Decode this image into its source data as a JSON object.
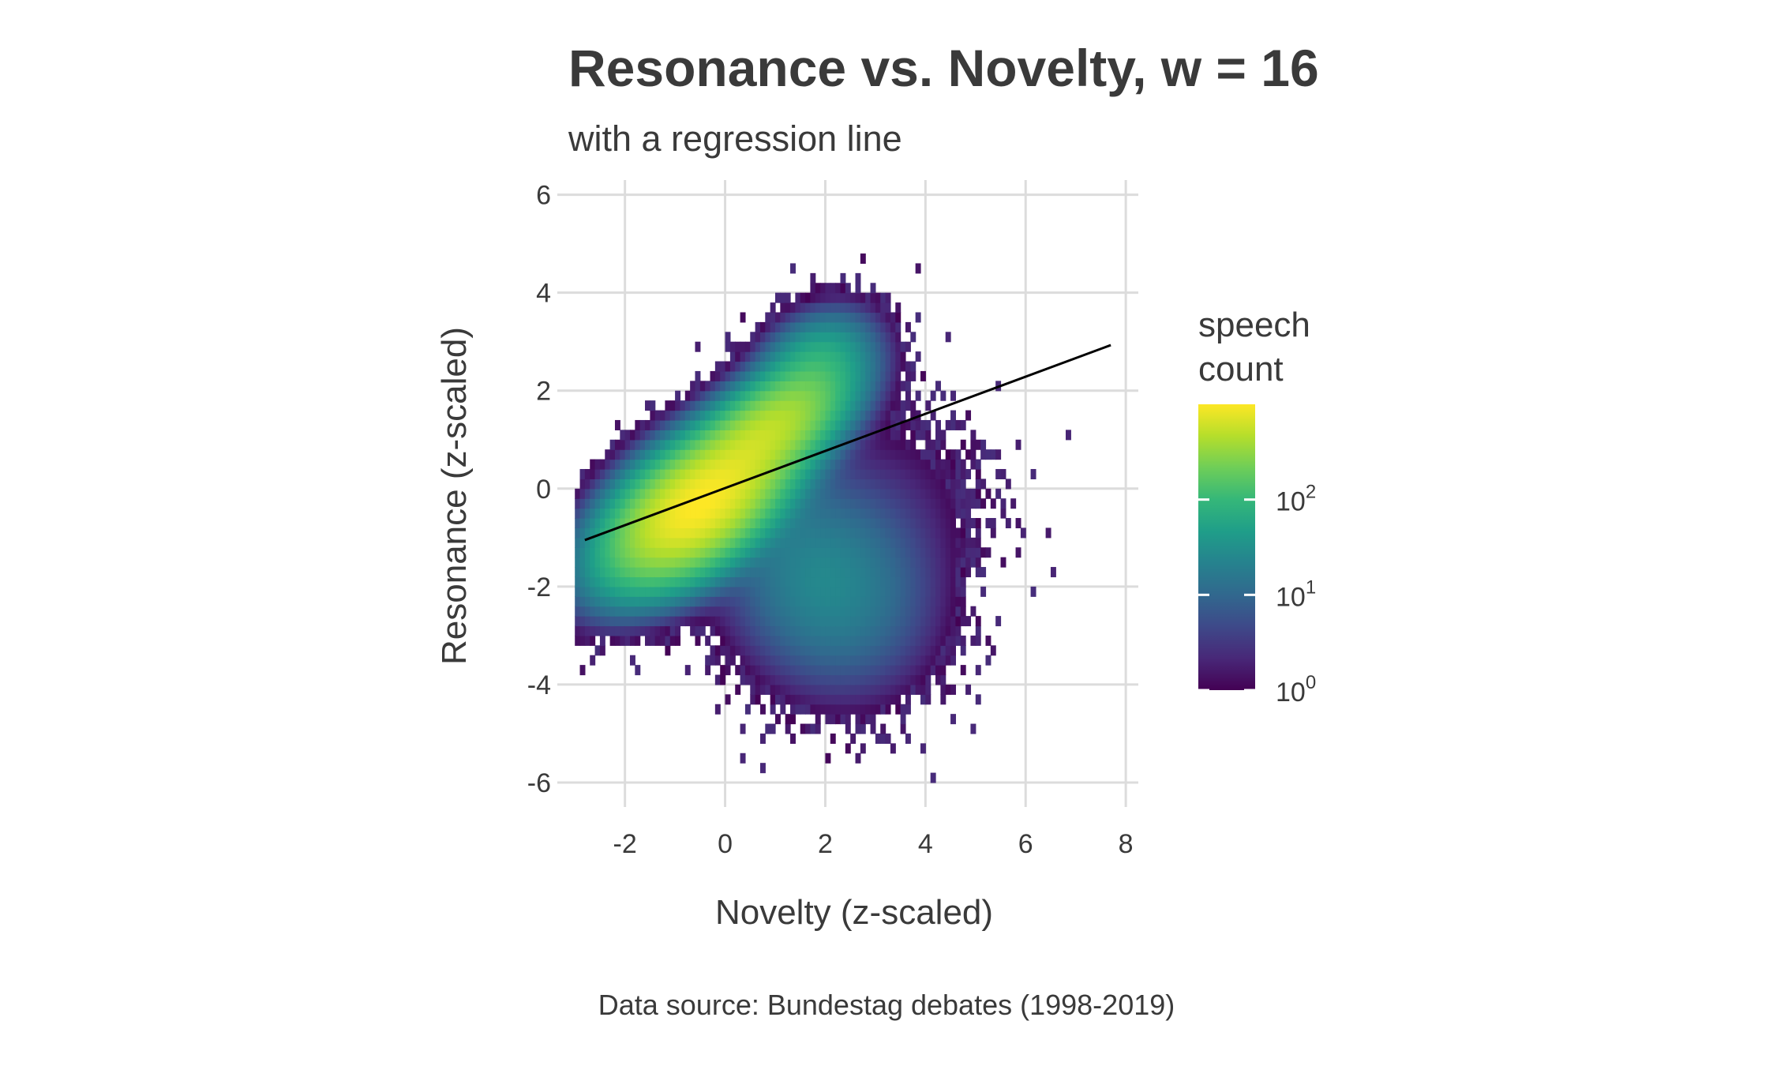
{
  "chart_data": {
    "type": "heatmap",
    "title": "Resonance vs. Novelty, w = 16",
    "subtitle": "with a regression line",
    "xlabel": "Novelty (z-scaled)",
    "ylabel": "Resonance (z-scaled)",
    "caption": "Data source: Bundestag debates (1998-2019)",
    "xlim": [
      -3.35,
      8.25
    ],
    "ylim": [
      -6.5,
      6.3
    ],
    "x_ticks": [
      -2,
      0,
      2,
      4,
      6,
      8
    ],
    "y_ticks": [
      -6,
      -4,
      -2,
      0,
      2,
      4,
      6
    ],
    "x_tick_labels": [
      "-2",
      "0",
      "2",
      "4",
      "6",
      "8"
    ],
    "y_tick_labels": [
      "-6",
      "-4",
      "-2",
      "0",
      "2",
      "4",
      "6"
    ],
    "grid": true,
    "legend": {
      "title_lines": [
        "speech",
        "count"
      ],
      "scale": "log10",
      "colormap": "viridis",
      "range": [
        1,
        1000
      ],
      "tick_values": [
        1,
        10,
        100
      ],
      "tick_bases": [
        "10",
        "10",
        "10"
      ],
      "tick_exponents": [
        "0",
        "1",
        "2"
      ],
      "placement": "right"
    },
    "regression_line": {
      "x": [
        -2.8,
        7.7
      ],
      "y": [
        -1.05,
        2.93
      ],
      "color": "#000000"
    },
    "density_components": [
      {
        "cx": -0.55,
        "cy": -0.35,
        "sx": 0.85,
        "sy": 0.75,
        "rho": 0.55,
        "peak": 1000
      },
      {
        "cx": 0.9,
        "cy": 1.2,
        "sx": 0.75,
        "sy": 0.65,
        "rho": 0.6,
        "peak": 450
      },
      {
        "cx": 1.8,
        "cy": 2.6,
        "sx": 0.55,
        "sy": 0.5,
        "rho": 0.3,
        "peak": 60
      },
      {
        "cx": 2.0,
        "cy": -1.9,
        "sx": 1.0,
        "sy": 1.1,
        "rho": -0.15,
        "peak": 25
      },
      {
        "cx": 3.3,
        "cy": -0.4,
        "sx": 1.1,
        "sy": 1.3,
        "rho": 0.0,
        "peak": 1.8
      }
    ],
    "bin_size": [
      0.1,
      0.2
    ]
  },
  "colors": {
    "grid": "#dcdcdc",
    "text": "#3a3a3a",
    "viridis_stops": [
      "#440154",
      "#482878",
      "#3e4989",
      "#31688e",
      "#26828e",
      "#1f9e89",
      "#35b779",
      "#6ece58",
      "#b5de2b",
      "#fde725"
    ]
  }
}
